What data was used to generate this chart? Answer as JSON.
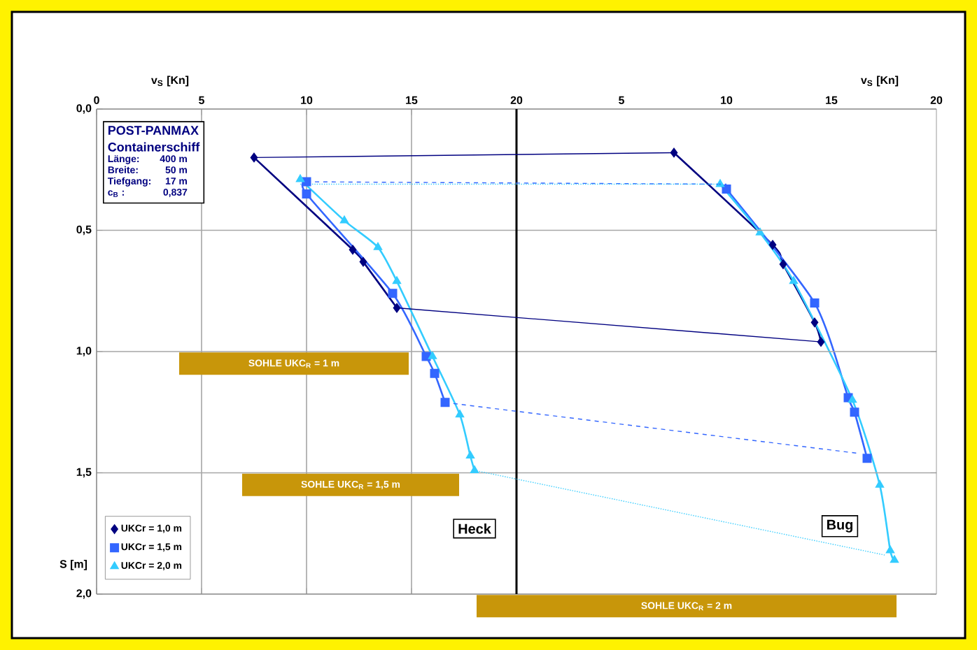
{
  "chart_data": {
    "type": "line",
    "xlabel": "v$_{S}$ [Kn]",
    "x2label": "v$_{S}$ [Kn]",
    "ylabel": "S [m]",
    "xlim": [
      0,
      40
    ],
    "ylim": [
      2,
      0
    ],
    "xticks": [
      0,
      5,
      10,
      15,
      20
    ],
    "x2lim": [
      -20,
      20
    ],
    "x2ticks": [
      5,
      10,
      15,
      20
    ],
    "yticks": [
      {
        "value": 0,
        "label": "0,0"
      },
      {
        "value": 0.5,
        "label": "0,5"
      },
      {
        "value": 1,
        "label": "1,0"
      },
      {
        "value": 1.5,
        "label": "1,5"
      },
      {
        "value": 2,
        "label": "2,0"
      }
    ],
    "grid": true,
    "legend": "bottom left",
    "line_style": "solid",
    "ref_lines": [
      {
        "axis": "x",
        "value": 20,
        "color": "#000000"
      }
    ],
    "series": [
      {
        "name": "UKCr = 1,0 m",
        "color": "#000080",
        "marker": "diamond",
        "x": [
          7.5,
          12.2,
          12.7,
          14.3
        ],
        "values": [
          0.2,
          0.58,
          0.63,
          0.82
        ]
      },
      {
        "name": "UKCr = 1,5 m",
        "color": "#3366ff",
        "marker": "square",
        "x": [
          10.0,
          10.0,
          14.1,
          15.7,
          16.1,
          16.6
        ],
        "values": [
          0.3,
          0.35,
          0.76,
          1.02,
          1.09,
          1.21
        ]
      },
      {
        "name": "UKCr = 2,0 m",
        "color": "#33ccff",
        "marker": "triangle",
        "x": [
          9.7,
          11.8,
          13.4,
          14.3,
          16.0,
          17.3,
          17.8,
          18.0
        ],
        "values": [
          0.29,
          0.46,
          0.57,
          0.71,
          1.02,
          1.26,
          1.43,
          1.49
        ]
      },
      {
        "axis": "x2",
        "color": "#000080",
        "marker": "diamond",
        "x": [
          7.5,
          12.2,
          12.7,
          14.2,
          14.5
        ],
        "values": [
          0.18,
          0.56,
          0.64,
          0.88,
          0.96
        ]
      },
      {
        "axis": "x2",
        "color": "#3366ff",
        "marker": "square",
        "x": [
          10.0,
          14.2,
          15.8,
          16.1,
          16.7
        ],
        "values": [
          0.33,
          0.8,
          1.19,
          1.25,
          1.44
        ]
      },
      {
        "axis": "x2",
        "color": "#33ccff",
        "marker": "triangle",
        "x": [
          9.7,
          11.6,
          13.2,
          16.0,
          17.3,
          17.8,
          18.0
        ],
        "values": [
          0.31,
          0.51,
          0.71,
          1.2,
          1.55,
          1.82,
          1.86
        ]
      },
      {
        "color": "#000080",
        "marker": "none",
        "line_style": "solid",
        "x": [
          7.5,
          27.5
        ],
        "values": [
          0.2,
          0.18
        ]
      },
      {
        "color": "#000080",
        "marker": "none",
        "line_style": "solid",
        "x": [
          14.3,
          34.5
        ],
        "values": [
          0.82,
          0.96
        ]
      },
      {
        "color": "#3366ff",
        "marker": "none",
        "line_style": "dashed",
        "x": [
          10.0,
          30.0
        ],
        "values": [
          0.3,
          0.31
        ]
      },
      {
        "color": "#3366ff",
        "marker": "none",
        "line_style": "dashed",
        "x": [
          16.6,
          36.3
        ],
        "values": [
          1.21,
          1.42
        ]
      },
      {
        "color": "#33ccff",
        "marker": "none",
        "line_style": "dotted",
        "x": [
          9.7,
          29.7
        ],
        "values": [
          0.31,
          0.31
        ]
      },
      {
        "color": "#33ccff",
        "marker": "none",
        "line_style": "dotted",
        "x": [
          18.0,
          37.6
        ],
        "values": [
          1.49,
          1.84
        ]
      }
    ],
    "annotations": [
      "POST-PANMAX",
      "Containerschiff",
      "Länge:",
      "400 m",
      "Breite:",
      "50 m",
      "Tiefgang:",
      "17 m",
      "c$_{B}$ :",
      "0,837",
      "SOHLE UKC$_{R}$ = 1 m",
      "SOHLE UKC$_{R}$ = 1,5 m",
      "SOHLE UKC$_{R}$ = 2 m",
      "Heck",
      "Bug"
    ]
  }
}
